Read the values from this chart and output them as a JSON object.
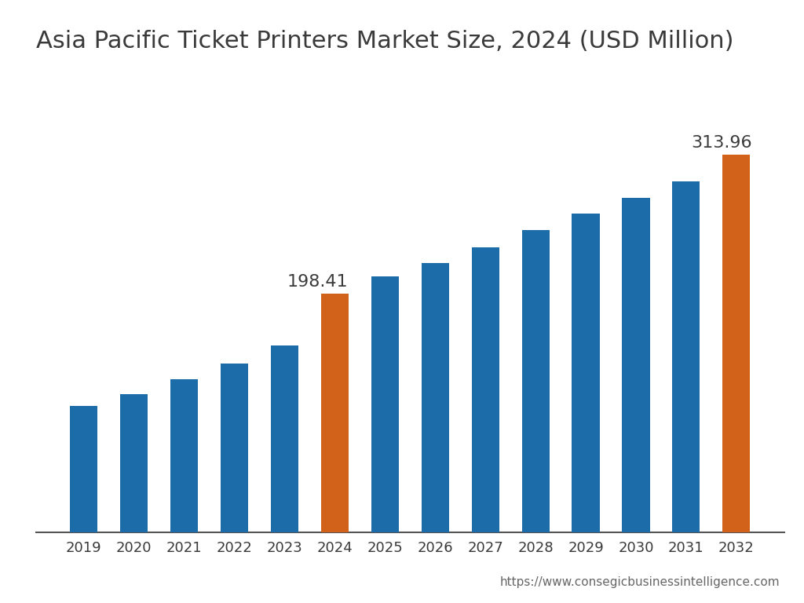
{
  "title": "Asia Pacific Ticket Printers Market Size, 2024 (USD Million)",
  "years": [
    2019,
    2020,
    2021,
    2022,
    2023,
    2024,
    2025,
    2026,
    2027,
    2028,
    2029,
    2030,
    2031,
    2032
  ],
  "values": [
    105,
    115,
    127,
    140,
    155,
    198.41,
    213,
    224,
    237,
    251,
    265,
    278,
    292,
    313.96
  ],
  "bar_colors": [
    "#1B6CA8",
    "#1B6CA8",
    "#1B6CA8",
    "#1B6CA8",
    "#1B6CA8",
    "#D2621A",
    "#1B6CA8",
    "#1B6CA8",
    "#1B6CA8",
    "#1B6CA8",
    "#1B6CA8",
    "#1B6CA8",
    "#1B6CA8",
    "#D2621A"
  ],
  "annotated_bars": [
    5,
    13
  ],
  "annotated_values": [
    "198.41",
    "313.96"
  ],
  "bar_width": 0.55,
  "ylim": [
    0,
    380
  ],
  "background_color": "#FFFFFF",
  "text_color": "#3a3a3a",
  "title_fontsize": 22,
  "tick_fontsize": 13,
  "annotation_fontsize": 16,
  "url_text": "https://www.consegicbusinessintelligence.com",
  "url_fontsize": 11,
  "url_color": "#666666"
}
